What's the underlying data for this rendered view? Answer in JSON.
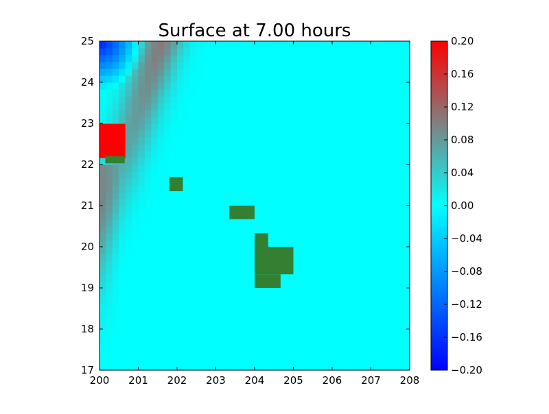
{
  "chart_data": {
    "type": "heatmap",
    "title": "Surface at 7.00 hours",
    "xlabel": "",
    "ylabel": "",
    "xlim": [
      200,
      208
    ],
    "ylim": [
      17,
      25
    ],
    "x_ticks": [
      "200",
      "201",
      "202",
      "203",
      "204",
      "205",
      "206",
      "207",
      "208"
    ],
    "y_ticks": [
      "17",
      "18",
      "19",
      "20",
      "21",
      "22",
      "23",
      "24",
      "25"
    ],
    "colorbar": {
      "range": [
        -0.2,
        0.2
      ],
      "ticks": [
        "0.20",
        "0.16",
        "0.12",
        "0.08",
        "0.04",
        "0.00",
        "−0.04",
        "−0.08",
        "−0.12",
        "−0.16",
        "−0.20"
      ],
      "colors": [
        {
          "value": -0.2,
          "color": "#0000ff"
        },
        {
          "value": 0.0,
          "color": "#00ffff"
        },
        {
          "value": 0.1,
          "color": "#808080"
        },
        {
          "value": 0.2,
          "color": "#ff0000"
        }
      ]
    },
    "background_value": 0.0,
    "land_color": "#338033",
    "land_regions": [
      {
        "x": [
          200.15,
          200.65
        ],
        "y": [
          22.03,
          22.2
        ]
      },
      {
        "x": [
          201.8,
          202.15
        ],
        "y": [
          21.35,
          21.7
        ]
      },
      {
        "x": [
          203.35,
          204.0
        ],
        "y": [
          20.67,
          21.0
        ]
      },
      {
        "x": [
          204.0,
          204.35
        ],
        "y": [
          20.0,
          20.33
        ]
      },
      {
        "x": [
          204.0,
          205.0
        ],
        "y": [
          19.33,
          20.0
        ]
      },
      {
        "x": [
          204.0,
          204.67
        ],
        "y": [
          19.0,
          19.33
        ]
      }
    ],
    "field_summary": {
      "northwest_blue_min": -0.18,
      "diagonal_band_peak": 0.14,
      "red_patch_peak": 0.2,
      "red_patch": {
        "x": [
          200.0,
          200.67
        ],
        "y": [
          22.2,
          23.0
        ]
      },
      "west_coast_plume": 0.07
    },
    "grid": false,
    "colorbar_position": "right"
  }
}
